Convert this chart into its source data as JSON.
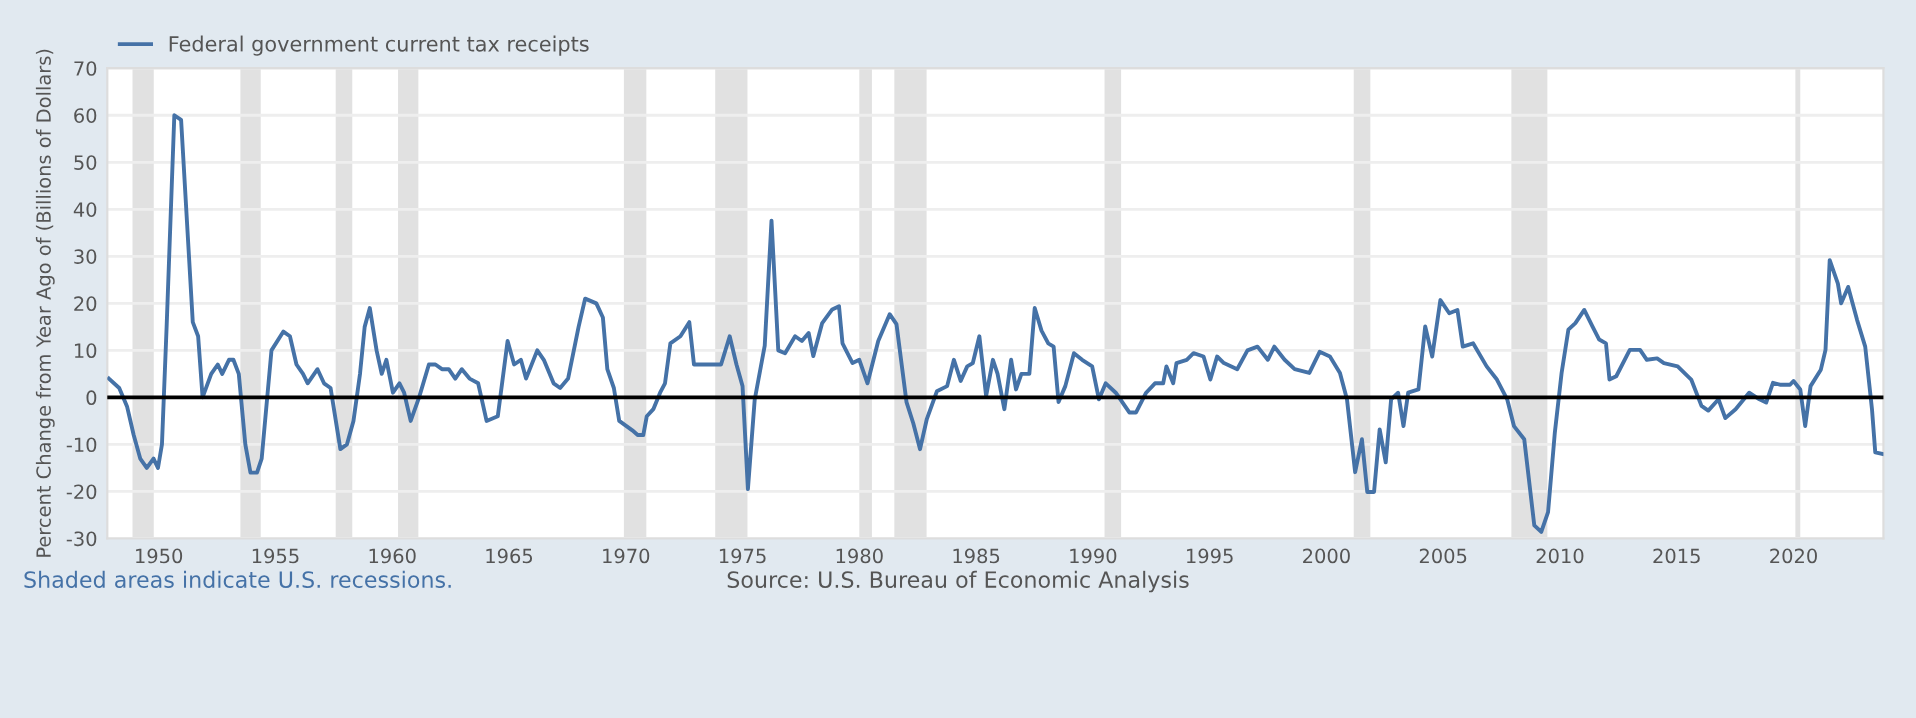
{
  "chart_data": {
    "type": "line",
    "ylabel": "Percent Change from Year Ago of (Billions of Dollars)",
    "series": [
      {
        "name": "Federal government current tax receipts",
        "color": "#4572a7",
        "x": [
          1947.87,
          1948.31,
          1948.65,
          1948.93,
          1949.21,
          1949.49,
          1949.78,
          1949.97,
          1950.14,
          1950.34,
          1950.56,
          1950.67,
          1950.96,
          1951.46,
          1951.69,
          1951.88,
          1952.25,
          1952.53,
          1952.72,
          1953.01,
          1953.2,
          1953.43,
          1953.71,
          1953.93,
          1954.21,
          1954.41,
          1954.83,
          1955.34,
          1955.62,
          1955.9,
          1956.18,
          1956.38,
          1956.8,
          1957.08,
          1957.36,
          1957.78,
          1958.06,
          1958.34,
          1958.62,
          1958.82,
          1959.04,
          1959.33,
          1959.55,
          1959.75,
          1960.03,
          1960.31,
          1960.51,
          1960.79,
          1961.15,
          1961.57,
          1961.85,
          1962.13,
          1962.42,
          1962.7,
          1962.98,
          1963.31,
          1963.68,
          1964.04,
          1964.52,
          1964.94,
          1965.22,
          1965.51,
          1965.73,
          1966.21,
          1966.49,
          1966.91,
          1967.19,
          1967.53,
          1967.98,
          1968.26,
          1968.74,
          1969.02,
          1969.21,
          1969.49,
          1969.72,
          1970.28,
          1970.51,
          1970.75,
          1970.9,
          1971.18,
          1971.47,
          1971.68,
          1971.91,
          1972.34,
          1972.72,
          1972.92,
          1973.35,
          1973.79,
          1974.08,
          1974.45,
          1974.74,
          1975.0,
          1975.23,
          1975.52,
          1975.95,
          1976.24,
          1976.53,
          1976.82,
          1977.25,
          1977.54,
          1977.83,
          1978.03,
          1978.41,
          1978.84,
          1979.13,
          1979.28,
          1979.71,
          1980.0,
          1980.35,
          1980.81,
          1981.3,
          1981.59,
          1982.02,
          1982.31,
          1982.6,
          1982.89,
          1983.32,
          1983.76,
          1984.05,
          1984.34,
          1984.62,
          1984.86,
          1985.14,
          1985.43,
          1985.72,
          1985.92,
          1986.21,
          1986.5,
          1986.71,
          1986.94,
          1987.28,
          1987.51,
          1987.8,
          1988.09,
          1988.32,
          1988.53,
          1988.82,
          1989.19,
          1989.54,
          1989.97,
          1990.26,
          1990.55,
          1990.98,
          1991.56,
          1991.85,
          1992.28,
          1992.66,
          1993.01,
          1993.15,
          1993.44,
          1993.58,
          1994.02,
          1994.31,
          1994.74,
          1995.03,
          1995.32,
          1995.61,
          1996.18,
          1996.62,
          1997.05,
          1997.49,
          1997.77,
          1998.21,
          1998.64,
          1999.27,
          1999.71,
          2000.15,
          2000.58,
          2000.88,
          2001.23,
          2001.52,
          2001.75,
          2002.04,
          2002.28,
          2002.54,
          2002.77,
          2003.07,
          2003.3,
          2003.5,
          2003.94,
          2004.23,
          2004.53,
          2004.88,
          2005.26,
          2005.61,
          2005.84,
          2006.28,
          2006.86,
          2007.3,
          2007.74,
          2008.03,
          2008.47,
          2008.9,
          2009.2,
          2009.49,
          2009.78,
          2010.07,
          2010.36,
          2010.66,
          2011.04,
          2011.39,
          2011.68,
          2011.97,
          2012.12,
          2012.41,
          2012.99,
          2013.43,
          2013.72,
          2014.16,
          2014.45,
          2015.04,
          2015.62,
          2016.06,
          2016.35,
          2016.79,
          2017.08,
          2017.52,
          2018.1,
          2018.54,
          2018.83,
          2019.12,
          2019.42,
          2019.85,
          2020.0,
          2020.29,
          2020.5,
          2020.73,
          2021.17,
          2021.37,
          2021.55,
          2021.9,
          2022.04,
          2022.34,
          2022.72,
          2023.07,
          2023.36,
          2023.5,
          2023.8
        ],
        "values": [
          4,
          2,
          -2,
          -8,
          -13,
          -15,
          -13,
          -15,
          -10,
          15,
          45,
          60,
          59,
          16,
          13,
          0,
          5,
          7,
          5,
          8,
          8,
          5,
          -10,
          -16,
          -16,
          -13,
          10,
          14,
          13,
          7,
          5,
          3,
          6,
          3,
          2,
          -11,
          -10,
          -5,
          5,
          15,
          19,
          10,
          5,
          8,
          1,
          3,
          1,
          -5,
          0,
          7,
          7,
          6,
          6,
          4,
          6,
          4,
          3,
          -5,
          -4,
          12,
          7,
          8,
          4,
          10,
          8,
          3,
          2,
          4,
          15,
          21,
          20,
          17,
          6,
          2,
          -5,
          -7,
          -8,
          -8,
          -4,
          -2.5,
          1,
          3,
          11.5,
          13,
          16,
          7,
          7,
          7,
          7,
          13,
          7,
          2.4,
          -19.5,
          -0.5,
          11,
          37.6,
          10,
          9.4,
          13,
          12,
          13.7,
          8.8,
          15.8,
          18.7,
          19.4,
          11.5,
          7.3,
          8,
          3,
          12,
          17.7,
          15.6,
          -1,
          -5.5,
          -11,
          -4.6,
          1.3,
          2.4,
          8,
          3.5,
          6.6,
          7.3,
          13,
          0.3,
          8,
          5,
          -2.5,
          8,
          1.7,
          5,
          5,
          19,
          14.2,
          11.5,
          10.8,
          -1,
          2.4,
          9.4,
          8,
          6.6,
          -0.4,
          3,
          1,
          -3.2,
          -3.2,
          1,
          3,
          3,
          6.6,
          3,
          7.3,
          8,
          9.4,
          8.7,
          3.8,
          8.7,
          7.3,
          6,
          10,
          10.8,
          8,
          10.8,
          8,
          6,
          5.2,
          9.7,
          8.7,
          5.2,
          -0.4,
          -15.9,
          -8.9,
          -20.1,
          -20.1,
          -6.8,
          -13.8,
          -0.4,
          1,
          -6.1,
          1,
          1.7,
          15.1,
          8.7,
          20.7,
          17.9,
          18.6,
          10.8,
          11.5,
          6.6,
          3.8,
          -0.4,
          -6.1,
          -8.9,
          -27.2,
          -28.6,
          -24.4,
          -7.5,
          5.2,
          14.4,
          15.8,
          18.6,
          15.1,
          12.3,
          11.5,
          3.8,
          4.5,
          10.1,
          10.1,
          8,
          8.3,
          7.3,
          6.6,
          3.8,
          -1.8,
          -2.8,
          -0.4,
          -4.4,
          -2.5,
          1,
          -0.4,
          -1.1,
          3.1,
          2.7,
          2.7,
          3.5,
          1.7,
          -6.1,
          2.4,
          5.9,
          10.1,
          29.2,
          24.2,
          20,
          23.5,
          16.5,
          10.8,
          -2.5,
          -11.7,
          -12
        ]
      }
    ],
    "xlim": [
      1947.8,
      2023.85
    ],
    "xticks": [
      1950,
      1955,
      1960,
      1965,
      1970,
      1975,
      1980,
      1985,
      1990,
      1995,
      2000,
      2005,
      2010,
      2015,
      2020
    ],
    "ylim": [
      -30,
      70
    ],
    "yticks": [
      -30,
      -20,
      -10,
      0,
      10,
      20,
      30,
      40,
      50,
      60,
      70
    ],
    "grid": "y",
    "legend": "top left",
    "line_style": "solid",
    "ref_lines": [
      {
        "axis": "y",
        "value": 0,
        "color": "#000000"
      }
    ],
    "bands": [
      {
        "axis": "x",
        "from": 1948.88,
        "to": 1949.79,
        "color": "#e1e1e1"
      },
      {
        "axis": "x",
        "from": 1953.5,
        "to": 1954.37,
        "color": "#e1e1e1"
      },
      {
        "axis": "x",
        "from": 1957.58,
        "to": 1958.29,
        "color": "#e1e1e1"
      },
      {
        "axis": "x",
        "from": 1960.25,
        "to": 1961.12,
        "color": "#e1e1e1"
      },
      {
        "axis": "x",
        "from": 1969.92,
        "to": 1970.88,
        "color": "#e1e1e1"
      },
      {
        "axis": "x",
        "from": 1973.83,
        "to": 1975.21,
        "color": "#e1e1e1"
      },
      {
        "axis": "x",
        "from": 1980.0,
        "to": 1980.54,
        "color": "#e1e1e1"
      },
      {
        "axis": "x",
        "from": 1981.5,
        "to": 1982.88,
        "color": "#e1e1e1"
      },
      {
        "axis": "x",
        "from": 1990.5,
        "to": 1991.21,
        "color": "#e1e1e1"
      },
      {
        "axis": "x",
        "from": 2001.17,
        "to": 2001.88,
        "color": "#e1e1e1"
      },
      {
        "axis": "x",
        "from": 2007.92,
        "to": 2009.46,
        "color": "#e1e1e1"
      },
      {
        "axis": "x",
        "from": 2020.08,
        "to": 2020.29,
        "color": "#e1e1e1"
      }
    ],
    "annotations": [
      "Shaded areas indicate U.S. recessions.",
      "Source: U.S. Bureau of Economic Analysis"
    ]
  }
}
